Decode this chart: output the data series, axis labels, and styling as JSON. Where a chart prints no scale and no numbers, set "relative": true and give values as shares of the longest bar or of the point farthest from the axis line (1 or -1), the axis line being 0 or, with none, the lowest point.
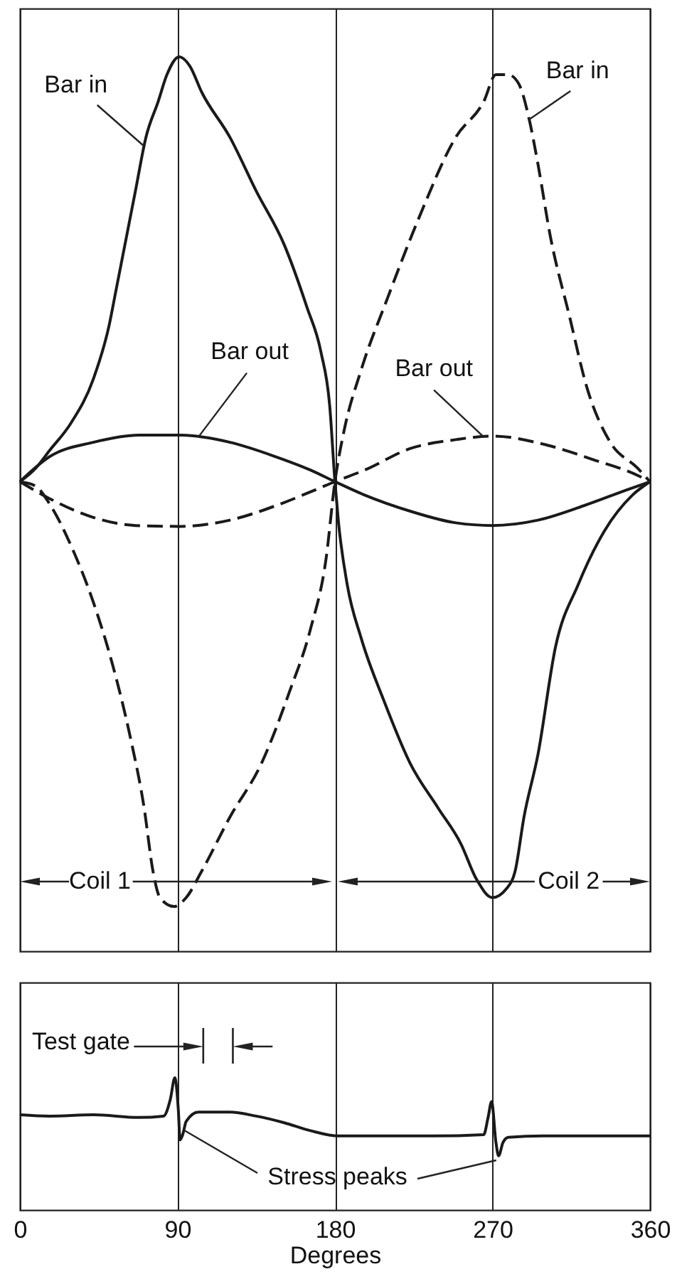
{
  "chart_data": [
    {
      "type": "line",
      "relative": true,
      "xlim": [
        0,
        360
      ],
      "xticks": [
        0,
        90,
        180,
        270,
        360
      ],
      "grid": "x",
      "tick_labels": false,
      "series": [
        {
          "color": "#1a1a1a",
          "line_style": "solid",
          "x": [
            0,
            9,
            17,
            29,
            42,
            51,
            55,
            61,
            66,
            72,
            79,
            84,
            91,
            97,
            104,
            120,
            135,
            151,
            164,
            172,
            177,
            180,
            182,
            187,
            195,
            208,
            223,
            239,
            252,
            261,
            270,
            278,
            283,
            288,
            296,
            306,
            319,
            334,
            350,
            360
          ],
          "values": [
            0.525,
            0.54,
            0.56,
            0.59,
            0.64,
            0.7,
            0.74,
            0.8,
            0.85,
            0.91,
            0.95,
            0.98,
            1,
            0.99,
            0.96,
            0.91,
            0.85,
            0.79,
            0.72,
            0.67,
            0.61,
            0.525,
            0.48,
            0.41,
            0.35,
            0.28,
            0.21,
            0.16,
            0.12,
            0.08,
            0.06,
            0.07,
            0.09,
            0.15,
            0.22,
            0.34,
            0.41,
            0.47,
            0.51,
            0.525
          ]
        },
        {
          "color": "#1a1a1a",
          "line_style": "dashed",
          "x": [
            0,
            9,
            17,
            30,
            42,
            53,
            63,
            71,
            76,
            80,
            88,
            95,
            104,
            120,
            138,
            154,
            166,
            175,
            180,
            185,
            195,
            210,
            228,
            249,
            265,
            272,
            279,
            285,
            291,
            296,
            303,
            314,
            324,
            337,
            353,
            360
          ],
          "values": [
            0.525,
            0.52,
            0.5,
            0.45,
            0.39,
            0.32,
            0.24,
            0.16,
            0.09,
            0.06,
            0.05,
            0.06,
            0.09,
            0.15,
            0.21,
            0.29,
            0.36,
            0.44,
            0.525,
            0.58,
            0.65,
            0.73,
            0.82,
            0.91,
            0.95,
            0.98,
            0.98,
            0.97,
            0.93,
            0.88,
            0.8,
            0.71,
            0.63,
            0.57,
            0.54,
            0.525
          ]
        },
        {
          "color": "#1a1a1a",
          "line_style": "solid",
          "x": [
            0,
            17,
            42,
            68,
            91,
            120,
            146,
            166,
            180,
            197,
            223,
            249,
            270,
            296,
            322,
            347,
            360
          ],
          "values": [
            0.525,
            0.553,
            0.569,
            0.577,
            0.577,
            0.569,
            0.553,
            0.538,
            0.525,
            0.51,
            0.492,
            0.479,
            0.476,
            0.482,
            0.498,
            0.516,
            0.525
          ]
        },
        {
          "color": "#1a1a1a",
          "line_style": "dashed",
          "x": [
            0,
            17,
            42,
            66,
            91,
            120,
            146,
            169,
            180,
            197,
            223,
            249,
            270,
            301,
            327,
            353,
            360
          ],
          "values": [
            0.525,
            0.506,
            0.485,
            0.476,
            0.475,
            0.482,
            0.498,
            0.516,
            0.525,
            0.538,
            0.562,
            0.572,
            0.576,
            0.566,
            0.55,
            0.532,
            0.525
          ]
        }
      ],
      "annotations": [
        {
          "text": "Bar in",
          "x": 71,
          "y": 0.9
        },
        {
          "text": "Bar in",
          "x": 291,
          "y": 0.93
        },
        {
          "text": "Bar out",
          "x": 102,
          "y": 0.575
        },
        {
          "text": "Bar out",
          "x": 265,
          "y": 0.575
        },
        "Coil 1",
        "Coil 2"
      ]
    },
    {
      "type": "line",
      "relative": true,
      "xlim": [
        0,
        360
      ],
      "xticks": [
        0,
        90,
        180,
        270,
        360
      ],
      "grid": "x",
      "tick_labels": "x",
      "xlabel": "Degrees",
      "series": [
        {
          "color": "#1a1a1a",
          "x": [
            0,
            17,
            42,
            68,
            82,
            86,
            88.5,
            90.5,
            91.5,
            93,
            95,
            102,
            120,
            135,
            151,
            166,
            182,
            210,
            236,
            265,
            267.5,
            269.5,
            272,
            273.5,
            276,
            279,
            301,
            327,
            360
          ],
          "values": [
            0.72,
            0.71,
            0.72,
            0.7,
            0.71,
            0.84,
            1,
            0.76,
            0.53,
            0.57,
            0.67,
            0.74,
            0.74,
            0.71,
            0.66,
            0.6,
            0.56,
            0.56,
            0.56,
            0.57,
            0.7,
            0.82,
            0.51,
            0.41,
            0.51,
            0.55,
            0.56,
            0.56,
            0.56
          ]
        }
      ],
      "annotations": [
        "Test gate",
        "Stress peaks"
      ]
    }
  ]
}
